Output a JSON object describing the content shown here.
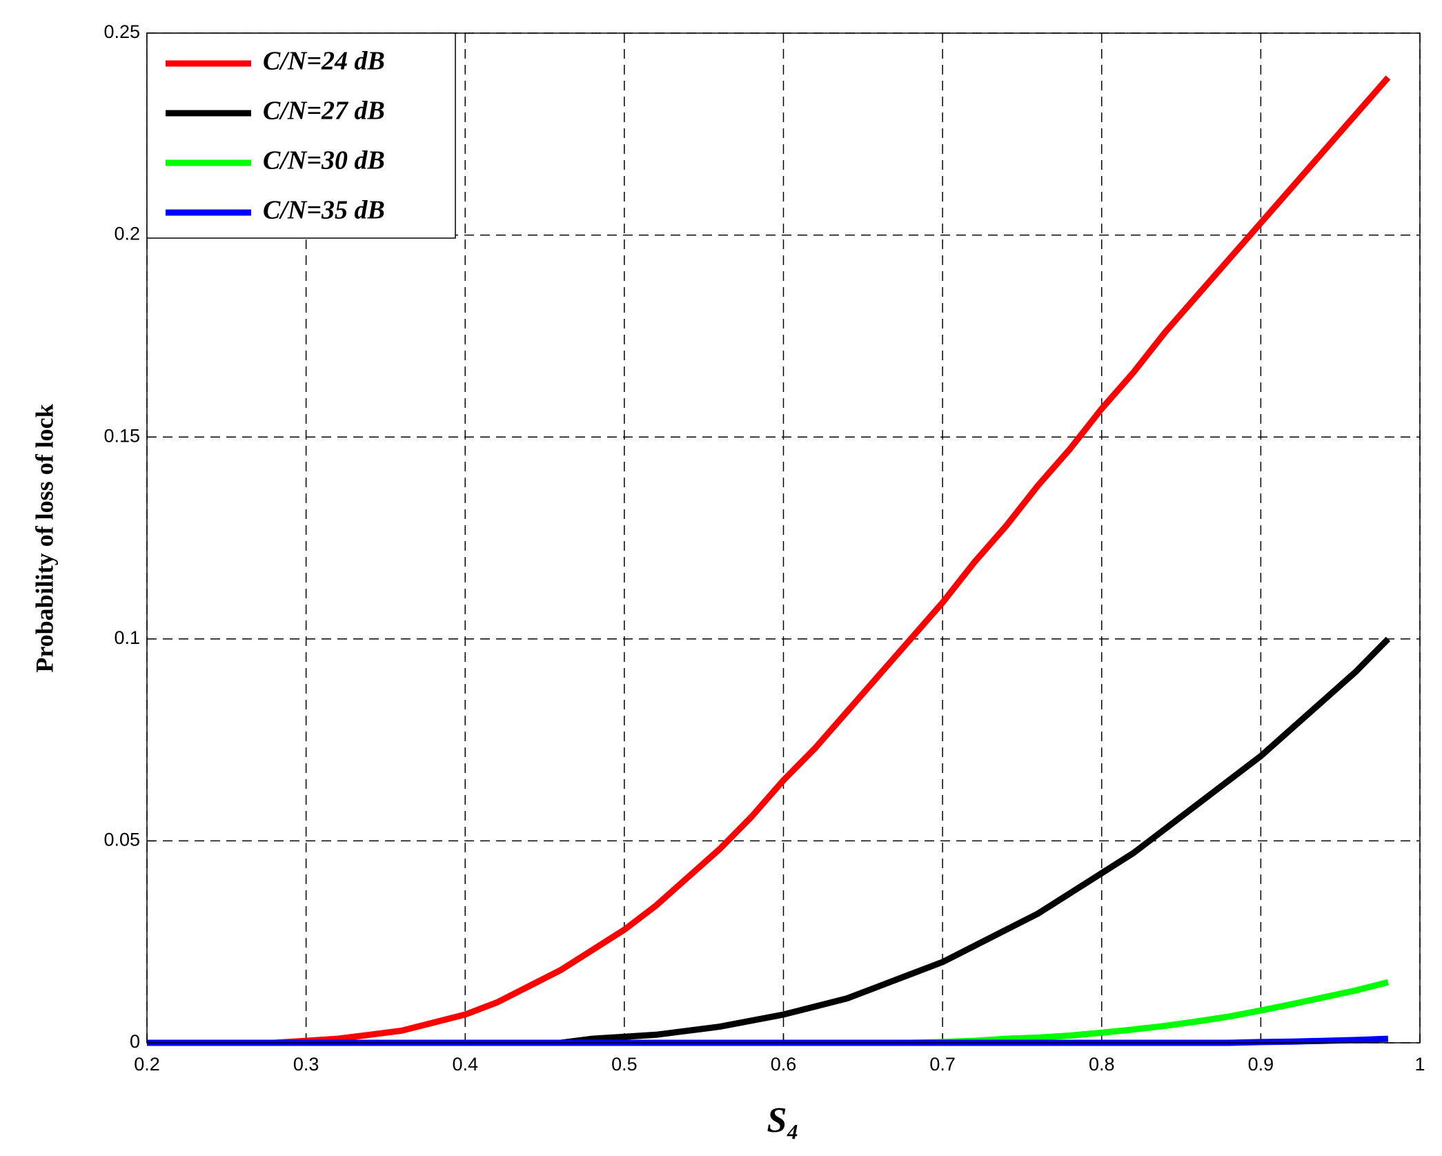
{
  "chart_data": {
    "type": "line",
    "x_label": "S₄",
    "y_label": "Probability of loss of lock",
    "x": [
      0.2,
      0.22,
      0.24,
      0.26,
      0.28,
      0.3,
      0.32,
      0.34,
      0.36,
      0.38,
      0.4,
      0.42,
      0.44,
      0.46,
      0.48,
      0.5,
      0.52,
      0.54,
      0.56,
      0.58,
      0.6,
      0.62,
      0.64,
      0.66,
      0.68,
      0.7,
      0.72,
      0.74,
      0.76,
      0.78,
      0.8,
      0.82,
      0.84,
      0.86,
      0.88,
      0.9,
      0.92,
      0.94,
      0.96,
      0.98
    ],
    "series": [
      {
        "name": "C/N=24 dB",
        "color": "#ff0000",
        "values": [
          0,
          0,
          0,
          0,
          0,
          0.0005,
          0.001,
          0.002,
          0.003,
          0.005,
          0.007,
          0.01,
          0.014,
          0.018,
          0.023,
          0.028,
          0.034,
          0.041,
          0.048,
          0.056,
          0.065,
          0.073,
          0.082,
          0.091,
          0.1,
          0.109,
          0.119,
          0.128,
          0.138,
          0.147,
          0.157,
          0.166,
          0.176,
          0.185,
          0.194,
          0.203,
          0.212,
          0.221,
          0.23,
          0.239
        ]
      },
      {
        "name": "C/N=27 dB",
        "color": "#000000",
        "values": [
          0,
          0,
          0,
          0,
          0,
          0,
          0,
          0,
          0,
          0,
          0,
          0,
          0,
          0,
          0.001,
          0.0015,
          0.002,
          0.003,
          0.004,
          0.0055,
          0.007,
          0.009,
          0.011,
          0.014,
          0.017,
          0.02,
          0.024,
          0.028,
          0.032,
          0.037,
          0.042,
          0.047,
          0.053,
          0.059,
          0.065,
          0.071,
          0.078,
          0.085,
          0.092,
          0.1
        ]
      },
      {
        "name": "C/N=30 dB",
        "color": "#00ff00",
        "values": [
          0,
          0,
          0,
          0,
          0,
          0,
          0,
          0,
          0,
          0,
          0,
          0,
          0,
          0,
          0,
          0,
          0,
          0,
          0,
          0,
          0,
          0,
          0,
          0,
          0,
          0.0002,
          0.0005,
          0.001,
          0.0013,
          0.0018,
          0.0025,
          0.0033,
          0.0042,
          0.0053,
          0.0065,
          0.008,
          0.0096,
          0.0113,
          0.013,
          0.015
        ]
      },
      {
        "name": "C/N=35 dB",
        "color": "#0000ff",
        "values": [
          0,
          0,
          0,
          0,
          0,
          0,
          0,
          0,
          0,
          0,
          0,
          0,
          0,
          0,
          0,
          0,
          0,
          0,
          0,
          0,
          0,
          0,
          0,
          0,
          0,
          0,
          0,
          0,
          0,
          0,
          0,
          0,
          0,
          0,
          0,
          0.0002,
          0.0003,
          0.0005,
          0.0007,
          0.001
        ]
      }
    ],
    "xlim": [
      0.2,
      1
    ],
    "xticks": [
      0.2,
      0.3,
      0.4,
      0.5,
      0.6,
      0.7,
      0.8,
      0.9,
      1
    ],
    "ylim": [
      0,
      0.25
    ],
    "yticks": [
      0,
      0.05,
      0.1,
      0.15,
      0.2,
      0.25
    ],
    "grid": true,
    "legend": "upper left"
  }
}
